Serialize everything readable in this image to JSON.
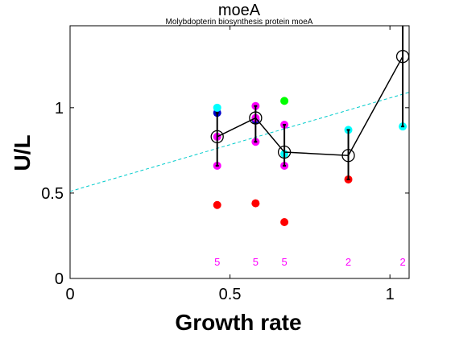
{
  "chart_data": {
    "type": "scatter",
    "title": "moeA",
    "subtitle": "Molybdopterin biosynthesis protein moeA",
    "xlabel": "Growth rate",
    "ylabel": "U/L",
    "xlim": [
      0,
      1.06
    ],
    "ylim": [
      0,
      1.48
    ],
    "xticks": [
      0,
      0.5,
      1
    ],
    "yticks": [
      0,
      0.5,
      1
    ],
    "xtick_labels": [
      "0",
      "0.5",
      "1"
    ],
    "ytick_labels": [
      "0",
      "0.5",
      "1"
    ],
    "grid": false,
    "colors": {
      "red": "#ff0000",
      "magenta": "#ff00ff",
      "blue": "#0000cc",
      "cyan": "#00ffff",
      "green": "#00ff00",
      "mean_line": "#000000",
      "fit_line": "#00cccc",
      "count_text": "#ff00ff"
    },
    "points": [
      {
        "x": 0.46,
        "y": 0.43,
        "color": "red"
      },
      {
        "x": 0.46,
        "y": 0.66,
        "color": "magenta"
      },
      {
        "x": 0.46,
        "y": 0.83,
        "color": "magenta"
      },
      {
        "x": 0.46,
        "y": 0.97,
        "color": "blue"
      },
      {
        "x": 0.46,
        "y": 1.0,
        "color": "cyan"
      },
      {
        "x": 0.58,
        "y": 0.44,
        "color": "red"
      },
      {
        "x": 0.58,
        "y": 0.8,
        "color": "magenta"
      },
      {
        "x": 0.58,
        "y": 0.93,
        "color": "blue"
      },
      {
        "x": 0.58,
        "y": 0.94,
        "color": "magenta"
      },
      {
        "x": 0.58,
        "y": 1.01,
        "color": "magenta"
      },
      {
        "x": 0.67,
        "y": 0.33,
        "color": "red"
      },
      {
        "x": 0.67,
        "y": 0.66,
        "color": "magenta"
      },
      {
        "x": 0.67,
        "y": 0.73,
        "color": "cyan"
      },
      {
        "x": 0.67,
        "y": 0.9,
        "color": "magenta"
      },
      {
        "x": 0.67,
        "y": 1.04,
        "color": "green"
      },
      {
        "x": 0.87,
        "y": 0.58,
        "color": "red"
      },
      {
        "x": 0.87,
        "y": 0.87,
        "color": "cyan"
      },
      {
        "x": 1.04,
        "y": 0.89,
        "color": "cyan"
      }
    ],
    "mean_series": {
      "x": [
        0.46,
        0.58,
        0.67,
        0.87,
        1.04
      ],
      "y": [
        0.83,
        0.94,
        0.74,
        0.72,
        1.3
      ],
      "err_low": [
        0.66,
        0.8,
        0.66,
        0.58,
        0.89
      ],
      "err_high": [
        0.97,
        1.01,
        0.9,
        0.87,
        1.5
      ]
    },
    "fit_line": {
      "x": [
        0,
        1.06
      ],
      "y": [
        0.51,
        1.09
      ]
    },
    "counts": [
      {
        "x": 0.46,
        "label": "5"
      },
      {
        "x": 0.58,
        "label": "5"
      },
      {
        "x": 0.67,
        "label": "5"
      },
      {
        "x": 0.87,
        "label": "2"
      },
      {
        "x": 1.04,
        "label": "2"
      }
    ],
    "counts_y": 0.1
  }
}
